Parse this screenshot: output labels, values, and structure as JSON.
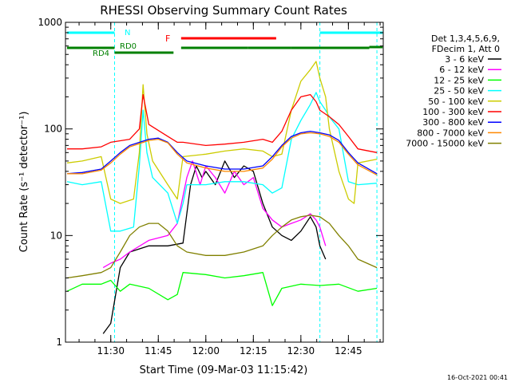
{
  "chart_data": {
    "type": "line",
    "title": "RHESSI Observing Summary Count Rates",
    "xlabel": "Start Time (09-Mar-03 11:15:42)",
    "ylabel": "Count Rate (s⁻¹ detector⁻¹)",
    "timestamp": "16-Oct-2021 00:41",
    "xlim": [
      11.2617,
      12.9333
    ],
    "ylim": [
      1,
      1000
    ],
    "yscale": "log",
    "x_ticks": [
      {
        "value": 11.5,
        "label": "11:30"
      },
      {
        "value": 11.75,
        "label": "11:45"
      },
      {
        "value": 12.0,
        "label": "12:00"
      },
      {
        "value": 12.25,
        "label": "12:15"
      },
      {
        "value": 12.5,
        "label": "12:30"
      },
      {
        "value": 12.75,
        "label": "12:45"
      }
    ],
    "y_ticks": [
      {
        "value": 1,
        "label": "1"
      },
      {
        "value": 10,
        "label": "10"
      },
      {
        "value": 100,
        "label": "100"
      },
      {
        "value": 1000,
        "label": "1000"
      }
    ],
    "legend": {
      "placement": "right",
      "header": [
        "Det 1,3,4,5,6,9,",
        "FDecim 1, Att 0"
      ]
    },
    "series": [
      {
        "name": "3 - 6 keV",
        "color": "#000000",
        "points": [
          [
            11.46,
            1.2
          ],
          [
            11.5,
            1.5
          ],
          [
            11.55,
            5
          ],
          [
            11.6,
            7
          ],
          [
            11.7,
            8
          ],
          [
            11.8,
            8
          ],
          [
            11.88,
            8.5
          ],
          [
            11.92,
            30
          ],
          [
            11.95,
            45
          ],
          [
            11.98,
            35
          ],
          [
            12.0,
            40
          ],
          [
            12.05,
            30
          ],
          [
            12.1,
            50
          ],
          [
            12.15,
            35
          ],
          [
            12.2,
            45
          ],
          [
            12.25,
            40
          ],
          [
            12.3,
            20
          ],
          [
            12.35,
            12
          ],
          [
            12.4,
            10
          ],
          [
            12.45,
            9
          ],
          [
            12.5,
            11
          ],
          [
            12.55,
            15
          ],
          [
            12.58,
            12
          ],
          [
            12.6,
            8
          ],
          [
            12.63,
            6
          ]
        ]
      },
      {
        "name": "6 - 12 keV",
        "color": "#ff00ff",
        "points": [
          [
            11.46,
            5
          ],
          [
            11.5,
            5.5
          ],
          [
            11.55,
            6
          ],
          [
            11.6,
            7
          ],
          [
            11.7,
            9
          ],
          [
            11.8,
            10
          ],
          [
            11.85,
            13
          ],
          [
            11.9,
            35
          ],
          [
            11.93,
            50
          ],
          [
            11.97,
            30
          ],
          [
            12.0,
            45
          ],
          [
            12.05,
            35
          ],
          [
            12.1,
            25
          ],
          [
            12.15,
            40
          ],
          [
            12.2,
            30
          ],
          [
            12.25,
            35
          ],
          [
            12.3,
            18
          ],
          [
            12.35,
            14
          ],
          [
            12.4,
            12
          ],
          [
            12.45,
            13
          ],
          [
            12.5,
            14
          ],
          [
            12.55,
            16
          ],
          [
            12.58,
            14
          ],
          [
            12.6,
            12
          ],
          [
            12.63,
            8
          ]
        ]
      },
      {
        "name": "12 - 25 keV",
        "color": "#00ff00",
        "points": [
          [
            11.27,
            3
          ],
          [
            11.35,
            3.5
          ],
          [
            11.45,
            3.5
          ],
          [
            11.5,
            3.8
          ],
          [
            11.55,
            3
          ],
          [
            11.6,
            3.5
          ],
          [
            11.7,
            3.2
          ],
          [
            11.8,
            2.5
          ],
          [
            11.85,
            2.8
          ],
          [
            11.88,
            4.5
          ],
          [
            12.0,
            4.3
          ],
          [
            12.1,
            4
          ],
          [
            12.2,
            4.2
          ],
          [
            12.3,
            4.5
          ],
          [
            12.35,
            2.2
          ],
          [
            12.4,
            3.2
          ],
          [
            12.5,
            3.5
          ],
          [
            12.6,
            3.4
          ],
          [
            12.7,
            3.5
          ],
          [
            12.8,
            3
          ],
          [
            12.9,
            3.2
          ]
        ]
      },
      {
        "name": "25 - 50 keV",
        "color": "#00ffff",
        "points": [
          [
            11.27,
            32
          ],
          [
            11.35,
            30
          ],
          [
            11.45,
            32
          ],
          [
            11.5,
            11
          ],
          [
            11.55,
            11
          ],
          [
            11.62,
            12
          ],
          [
            11.65,
            45
          ],
          [
            11.67,
            150
          ],
          [
            11.69,
            60
          ],
          [
            11.72,
            35
          ],
          [
            11.8,
            25
          ],
          [
            11.85,
            13
          ],
          [
            11.88,
            20
          ],
          [
            11.9,
            30
          ],
          [
            12.0,
            30
          ],
          [
            12.1,
            32
          ],
          [
            12.2,
            32
          ],
          [
            12.3,
            30
          ],
          [
            12.35,
            25
          ],
          [
            12.4,
            28
          ],
          [
            12.45,
            80
          ],
          [
            12.5,
            120
          ],
          [
            12.55,
            170
          ],
          [
            12.58,
            220
          ],
          [
            12.6,
            180
          ],
          [
            12.63,
            150
          ],
          [
            12.65,
            130
          ],
          [
            12.7,
            100
          ],
          [
            12.75,
            32
          ],
          [
            12.8,
            30
          ],
          [
            12.9,
            31
          ]
        ]
      },
      {
        "name": "50 - 100 keV",
        "color": "#cccc00",
        "points": [
          [
            11.27,
            48
          ],
          [
            11.35,
            50
          ],
          [
            11.45,
            55
          ],
          [
            11.5,
            22
          ],
          [
            11.55,
            20
          ],
          [
            11.62,
            22
          ],
          [
            11.65,
            60
          ],
          [
            11.67,
            260
          ],
          [
            11.69,
            90
          ],
          [
            11.72,
            50
          ],
          [
            11.8,
            30
          ],
          [
            11.85,
            22
          ],
          [
            11.88,
            55
          ],
          [
            12.0,
            58
          ],
          [
            12.1,
            62
          ],
          [
            12.2,
            65
          ],
          [
            12.3,
            62
          ],
          [
            12.35,
            55
          ],
          [
            12.4,
            58
          ],
          [
            12.45,
            150
          ],
          [
            12.5,
            280
          ],
          [
            12.55,
            360
          ],
          [
            12.58,
            430
          ],
          [
            12.6,
            300
          ],
          [
            12.63,
            200
          ],
          [
            12.65,
            100
          ],
          [
            12.7,
            40
          ],
          [
            12.75,
            22
          ],
          [
            12.78,
            20
          ],
          [
            12.8,
            48
          ],
          [
            12.9,
            52
          ]
        ]
      },
      {
        "name": "100 - 300 keV",
        "color": "#ff0000",
        "points": [
          [
            11.27,
            65
          ],
          [
            11.35,
            65
          ],
          [
            11.45,
            68
          ],
          [
            11.5,
            75
          ],
          [
            11.6,
            80
          ],
          [
            11.65,
            100
          ],
          [
            11.67,
            210
          ],
          [
            11.7,
            110
          ],
          [
            11.8,
            85
          ],
          [
            11.85,
            75
          ],
          [
            11.88,
            75
          ],
          [
            12.0,
            70
          ],
          [
            12.1,
            72
          ],
          [
            12.2,
            75
          ],
          [
            12.3,
            80
          ],
          [
            12.35,
            75
          ],
          [
            12.4,
            95
          ],
          [
            12.45,
            150
          ],
          [
            12.5,
            200
          ],
          [
            12.55,
            210
          ],
          [
            12.58,
            180
          ],
          [
            12.6,
            150
          ],
          [
            12.65,
            130
          ],
          [
            12.7,
            110
          ],
          [
            12.75,
            85
          ],
          [
            12.8,
            65
          ],
          [
            12.9,
            60
          ]
        ]
      },
      {
        "name": "300 - 800 keV",
        "color": "#0000ff",
        "points": [
          [
            11.27,
            38
          ],
          [
            11.35,
            39
          ],
          [
            11.45,
            42
          ],
          [
            11.5,
            50
          ],
          [
            11.55,
            60
          ],
          [
            11.6,
            70
          ],
          [
            11.7,
            80
          ],
          [
            11.75,
            82
          ],
          [
            11.8,
            75
          ],
          [
            11.85,
            60
          ],
          [
            11.9,
            50
          ],
          [
            12.0,
            45
          ],
          [
            12.1,
            42
          ],
          [
            12.2,
            42
          ],
          [
            12.3,
            45
          ],
          [
            12.35,
            55
          ],
          [
            12.4,
            70
          ],
          [
            12.45,
            85
          ],
          [
            12.5,
            92
          ],
          [
            12.55,
            95
          ],
          [
            12.6,
            92
          ],
          [
            12.65,
            88
          ],
          [
            12.7,
            78
          ],
          [
            12.75,
            60
          ],
          [
            12.8,
            48
          ],
          [
            12.9,
            38
          ]
        ]
      },
      {
        "name": "800 - 7000 keV",
        "color": "#ff8800",
        "points": [
          [
            11.27,
            38
          ],
          [
            11.35,
            38
          ],
          [
            11.45,
            41
          ],
          [
            11.5,
            48
          ],
          [
            11.55,
            58
          ],
          [
            11.6,
            68
          ],
          [
            11.7,
            78
          ],
          [
            11.75,
            80
          ],
          [
            11.8,
            74
          ],
          [
            11.85,
            58
          ],
          [
            11.9,
            48
          ],
          [
            12.0,
            43
          ],
          [
            12.1,
            40
          ],
          [
            12.2,
            40
          ],
          [
            12.3,
            43
          ],
          [
            12.35,
            52
          ],
          [
            12.4,
            68
          ],
          [
            12.45,
            82
          ],
          [
            12.5,
            90
          ],
          [
            12.55,
            92
          ],
          [
            12.6,
            90
          ],
          [
            12.65,
            85
          ],
          [
            12.7,
            75
          ],
          [
            12.75,
            58
          ],
          [
            12.8,
            46
          ],
          [
            12.9,
            37
          ]
        ]
      },
      {
        "name": "7000 - 15000 keV",
        "color": "#808000",
        "points": [
          [
            11.27,
            4
          ],
          [
            11.35,
            4.2
          ],
          [
            11.45,
            4.5
          ],
          [
            11.5,
            5
          ],
          [
            11.55,
            7
          ],
          [
            11.6,
            10
          ],
          [
            11.65,
            12
          ],
          [
            11.7,
            13
          ],
          [
            11.75,
            13
          ],
          [
            11.8,
            11
          ],
          [
            11.85,
            8
          ],
          [
            11.9,
            7
          ],
          [
            12.0,
            6.5
          ],
          [
            12.1,
            6.5
          ],
          [
            12.2,
            7
          ],
          [
            12.3,
            8
          ],
          [
            12.35,
            10
          ],
          [
            12.4,
            12
          ],
          [
            12.45,
            14
          ],
          [
            12.5,
            15
          ],
          [
            12.55,
            15.5
          ],
          [
            12.6,
            15
          ],
          [
            12.65,
            13
          ],
          [
            12.7,
            10
          ],
          [
            12.75,
            8
          ],
          [
            12.8,
            6
          ],
          [
            12.9,
            5
          ]
        ]
      }
    ],
    "annotations": {
      "n_label": "N",
      "f_label": "F",
      "rd0_label": "RD0",
      "rd4_label": "RD4",
      "night_bars": [
        [
          11.27,
          11.52
        ],
        [
          12.6,
          12.93
        ]
      ],
      "flare_bar": [
        11.87,
        12.37
      ],
      "rd0_bars": [
        [
          11.27,
          11.52
        ],
        [
          11.87,
          12.22
        ],
        [
          12.22,
          12.45
        ],
        [
          12.45,
          12.86
        ]
      ],
      "rd4_bars": [
        [
          11.52,
          11.83
        ]
      ],
      "rd_extra_bars": [
        [
          12.86,
          12.93
        ]
      ],
      "dashed_vlines": [
        11.52,
        12.6,
        12.9
      ]
    },
    "colors": {
      "night": "#00ffff",
      "flare": "#ff0000",
      "rd": "#008000",
      "axes": "#000000"
    }
  }
}
